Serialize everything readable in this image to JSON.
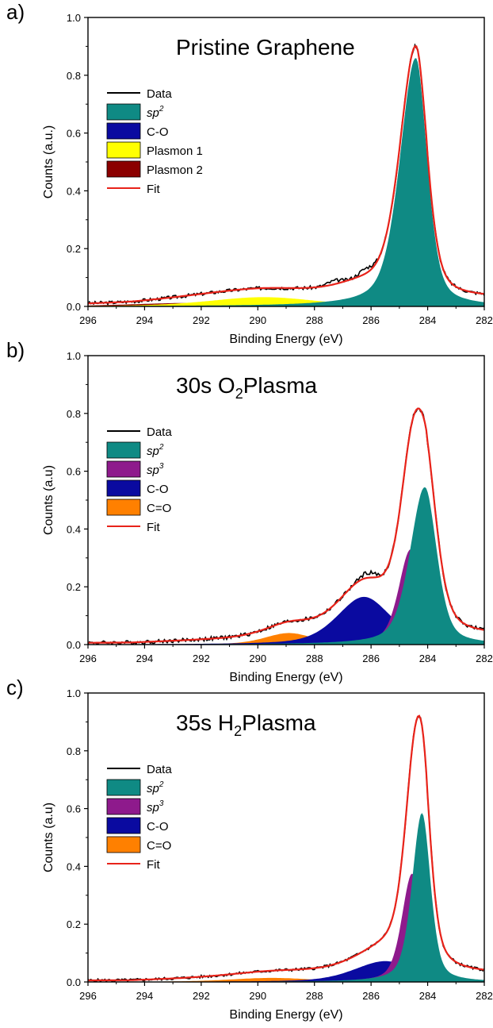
{
  "chart_data": [
    {
      "type": "area",
      "panel_label": "a)",
      "title": "Pristine Graphene",
      "title_sub": "",
      "title_after": "",
      "xlabel": "Binding Energy (eV)",
      "ylabel": "Counts (a.u.)",
      "xlim": [
        296,
        282
      ],
      "ylim": [
        0,
        1.0
      ],
      "x_ticks": [
        "296",
        "294",
        "292",
        "290",
        "288",
        "286",
        "284",
        "282"
      ],
      "y_ticks": [
        "0.0",
        "0.2",
        "0.4",
        "0.6",
        "0.8",
        "1.0"
      ],
      "grid": false,
      "legend_position": "top-left",
      "legend": [
        {
          "kind": "line",
          "label": "Data",
          "italic": false,
          "sup": "",
          "color": "#000000"
        },
        {
          "kind": "patch",
          "label": "sp",
          "italic": true,
          "sup": "2",
          "color": "#0f8a84"
        },
        {
          "kind": "patch",
          "label": "C-O",
          "italic": false,
          "sup": "",
          "color": "#0a0aa0"
        },
        {
          "kind": "patch",
          "label": "Plasmon 1",
          "italic": false,
          "sup": "",
          "color": "#ffff00"
        },
        {
          "kind": "patch",
          "label": "Plasmon 2",
          "italic": false,
          "sup": "",
          "color": "#8b0000"
        },
        {
          "kind": "line",
          "label": "Fit",
          "italic": false,
          "sup": "",
          "color": "#e8231a"
        }
      ],
      "series": [
        {
          "name": "Plasmon 2",
          "kind": "peak",
          "color": "#8b0000",
          "center": 292.3,
          "height": 0.012,
          "width": 2.2,
          "tail": 0
        },
        {
          "name": "Plasmon 1",
          "kind": "peak",
          "color": "#ffff00",
          "center": 289.8,
          "height": 0.032,
          "width": 1.9,
          "tail": 0
        },
        {
          "name": "C-O",
          "kind": "peak",
          "color": "#0a0aa0",
          "center": 286.4,
          "height": 0.026,
          "width": 0.9,
          "tail": 0
        },
        {
          "name": "sp2",
          "kind": "peak",
          "color": "#0f8a84",
          "center": 284.42,
          "height": 0.86,
          "width": 0.4,
          "tail": 0.05
        },
        {
          "name": "Fit",
          "kind": "fit",
          "color": "#e8231a"
        },
        {
          "name": "Data",
          "kind": "data",
          "color": "#000000",
          "noise": 0.006,
          "bumps": [
            {
              "x": 287.3,
              "h": 0.012
            },
            {
              "x": 286.2,
              "h": 0.018
            }
          ]
        }
      ]
    },
    {
      "type": "area",
      "panel_label": "b)",
      "title": "30s O",
      "title_sub": "2",
      "title_after": "Plasma",
      "xlabel": "Binding Energy (eV)",
      "ylabel": "Counts (a.u)",
      "xlim": [
        296,
        282
      ],
      "ylim": [
        0,
        1.0
      ],
      "x_ticks": [
        "296",
        "294",
        "292",
        "290",
        "288",
        "286",
        "284",
        "282"
      ],
      "y_ticks": [
        "0.0",
        "0.2",
        "0.4",
        "0.6",
        "0.8",
        "1.0"
      ],
      "grid": false,
      "legend_position": "top-left",
      "legend": [
        {
          "kind": "line",
          "label": "Data",
          "italic": false,
          "sup": "",
          "color": "#000000"
        },
        {
          "kind": "patch",
          "label": "sp",
          "italic": true,
          "sup": "2",
          "color": "#0f8a84"
        },
        {
          "kind": "patch",
          "label": "sp",
          "italic": true,
          "sup": "3",
          "color": "#8e1a8c"
        },
        {
          "kind": "patch",
          "label": "C-O",
          "italic": false,
          "sup": "",
          "color": "#0a0aa0"
        },
        {
          "kind": "patch",
          "label": "C=O",
          "italic": false,
          "sup": "",
          "color": "#ff8000"
        },
        {
          "kind": "line",
          "label": "Fit",
          "italic": false,
          "sup": "",
          "color": "#e8231a"
        }
      ],
      "series": [
        {
          "name": "C=O",
          "kind": "peak",
          "color": "#ff8000",
          "center": 288.9,
          "height": 0.04,
          "width": 0.85,
          "tail": 0
        },
        {
          "name": "C-O",
          "kind": "peak",
          "color": "#0a0aa0",
          "center": 286.25,
          "height": 0.165,
          "width": 0.95,
          "tail": 0
        },
        {
          "name": "sp3",
          "kind": "peak",
          "color": "#8e1a8c",
          "center": 284.6,
          "height": 0.33,
          "width": 0.42,
          "tail": 0
        },
        {
          "name": "sp2",
          "kind": "peak",
          "color": "#0f8a84",
          "center": 284.1,
          "height": 0.545,
          "width": 0.42,
          "tail": 0.03
        },
        {
          "name": "Fit",
          "kind": "fit",
          "color": "#e8231a"
        },
        {
          "name": "Data",
          "kind": "data",
          "color": "#000000",
          "noise": 0.007,
          "bumps": [
            {
              "x": 286.1,
              "h": 0.018
            }
          ]
        }
      ]
    },
    {
      "type": "area",
      "panel_label": "c)",
      "title": "35s H",
      "title_sub": "2",
      "title_after": "Plasma",
      "xlabel": "Binding Energy (eV)",
      "ylabel": "Counts (a.u)",
      "xlim": [
        296,
        282
      ],
      "ylim": [
        0,
        1.0
      ],
      "x_ticks": [
        "296",
        "294",
        "292",
        "290",
        "288",
        "286",
        "284",
        "282"
      ],
      "y_ticks": [
        "0.0",
        "0.2",
        "0.4",
        "0.6",
        "0.8",
        "1.0"
      ],
      "grid": false,
      "legend_position": "top-left",
      "legend": [
        {
          "kind": "line",
          "label": "Data",
          "italic": false,
          "sup": "",
          "color": "#000000"
        },
        {
          "kind": "patch",
          "label": "sp",
          "italic": true,
          "sup": "2",
          "color": "#0f8a84"
        },
        {
          "kind": "patch",
          "label": "sp",
          "italic": true,
          "sup": "3",
          "color": "#8e1a8c"
        },
        {
          "kind": "patch",
          "label": "C-O",
          "italic": false,
          "sup": "",
          "color": "#0a0aa0"
        },
        {
          "kind": "patch",
          "label": "C=O",
          "italic": false,
          "sup": "",
          "color": "#ff8000"
        },
        {
          "kind": "line",
          "label": "Fit",
          "italic": false,
          "sup": "",
          "color": "#e8231a"
        }
      ],
      "series": [
        {
          "name": "C=O",
          "kind": "peak",
          "color": "#ff8000",
          "center": 289.5,
          "height": 0.014,
          "width": 1.5,
          "tail": 0
        },
        {
          "name": "C-O",
          "kind": "peak",
          "color": "#0a0aa0",
          "center": 285.5,
          "height": 0.072,
          "width": 1.1,
          "tail": 0
        },
        {
          "name": "sp3",
          "kind": "peak",
          "color": "#8e1a8c",
          "center": 284.55,
          "height": 0.375,
          "width": 0.36,
          "tail": 0
        },
        {
          "name": "sp2",
          "kind": "peak",
          "color": "#0f8a84",
          "center": 284.2,
          "height": 0.585,
          "width": 0.3,
          "tail": 0.02
        },
        {
          "name": "Fit",
          "kind": "fit",
          "color": "#e8231a"
        },
        {
          "name": "Data",
          "kind": "data",
          "color": "#000000",
          "noise": 0.005,
          "bumps": []
        }
      ]
    }
  ]
}
